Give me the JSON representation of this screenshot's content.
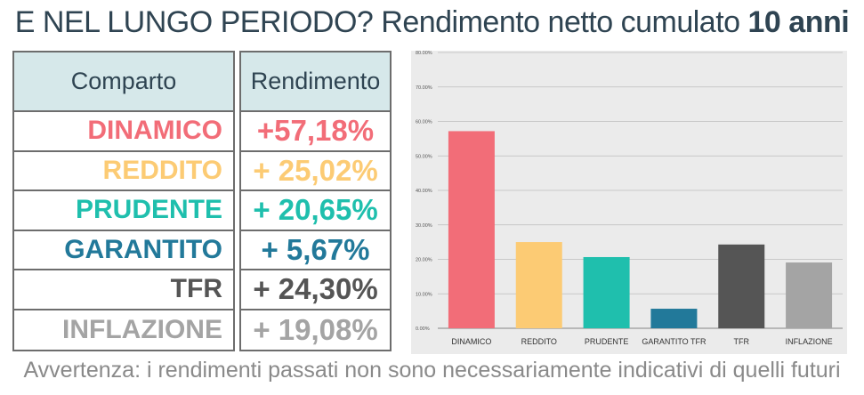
{
  "title": {
    "part1": "E NEL LUNGO PERIODO?",
    "part2": " Rendimento netto cumulato ",
    "part3": "10 anni"
  },
  "table": {
    "header_comparto": "Comparto",
    "header_rendimento": "Rendimento",
    "rows": [
      {
        "comparto": "DINAMICO",
        "rendimento": "+57,18%",
        "color": "#f26d78"
      },
      {
        "comparto": "REDDITO",
        "rendimento": "+ 25,02%",
        "color": "#fccb74"
      },
      {
        "comparto": "PRUDENTE",
        "rendimento": "+ 20,65%",
        "color": "#1fbfad"
      },
      {
        "comparto": "GARANTITO",
        "rendimento": "+ 5,67%",
        "color": "#22799a"
      },
      {
        "comparto": "TFR",
        "rendimento": "+ 24,30%",
        "color": "#555555"
      },
      {
        "comparto": "INFLAZIONE",
        "rendimento": "+ 19,08%",
        "color": "#a4a4a4"
      }
    ]
  },
  "chart_data": {
    "type": "bar",
    "categories": [
      "DINAMICO",
      "REDDITO",
      "PRUDENTE",
      "GARANTITO TFR",
      "TFR",
      "INFLAZIONE"
    ],
    "values": [
      57.18,
      25.02,
      20.65,
      5.67,
      24.3,
      19.08
    ],
    "colors": [
      "#f26d78",
      "#fccb74",
      "#1fbfad",
      "#22799a",
      "#555555",
      "#a4a4a4"
    ],
    "ylim": [
      0,
      80
    ],
    "yticks": [
      "0.00%",
      "10.00%",
      "20.00%",
      "30.00%",
      "40.00%",
      "50.00%",
      "60.00%",
      "70.00%",
      "80.00%"
    ],
    "grid": true
  },
  "footer": "Avvertenza: i rendimenti passati non sono necessariamente indicativi di quelli futuri"
}
